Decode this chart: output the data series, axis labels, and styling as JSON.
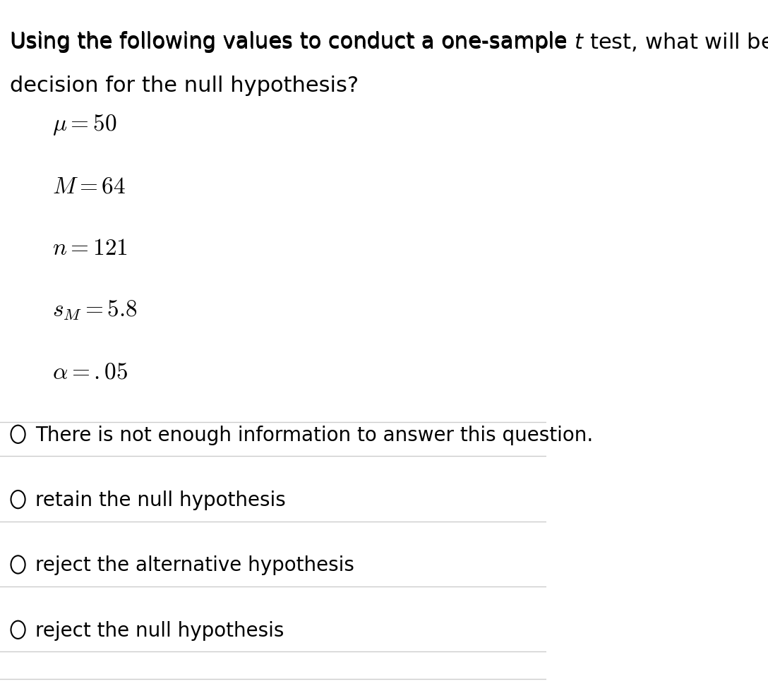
{
  "background_color": "#ffffff",
  "title_line1": "Using the following values to conduct a one-sample ",
  "title_t": "t",
  "title_line1_end": " test, what will be the",
  "title_line2": "decision for the null hypothesis?",
  "equations": [
    {
      "label": "$\\mu = 50$"
    },
    {
      "label": "$M = 64$"
    },
    {
      "label": "$n = 121$"
    },
    {
      "label": "$s_M = 5.8$"
    },
    {
      "label": "$\\alpha = .05$"
    }
  ],
  "choices": [
    "There is not enough information to answer this question.",
    "retain the null hypothesis",
    "reject the alternative hypothesis",
    "reject the null hypothesis"
  ],
  "divider_color": "#cccccc",
  "text_color": "#000000",
  "circle_color": "#000000",
  "font_size_title": 22,
  "font_size_eq": 22,
  "font_size_choice": 20
}
